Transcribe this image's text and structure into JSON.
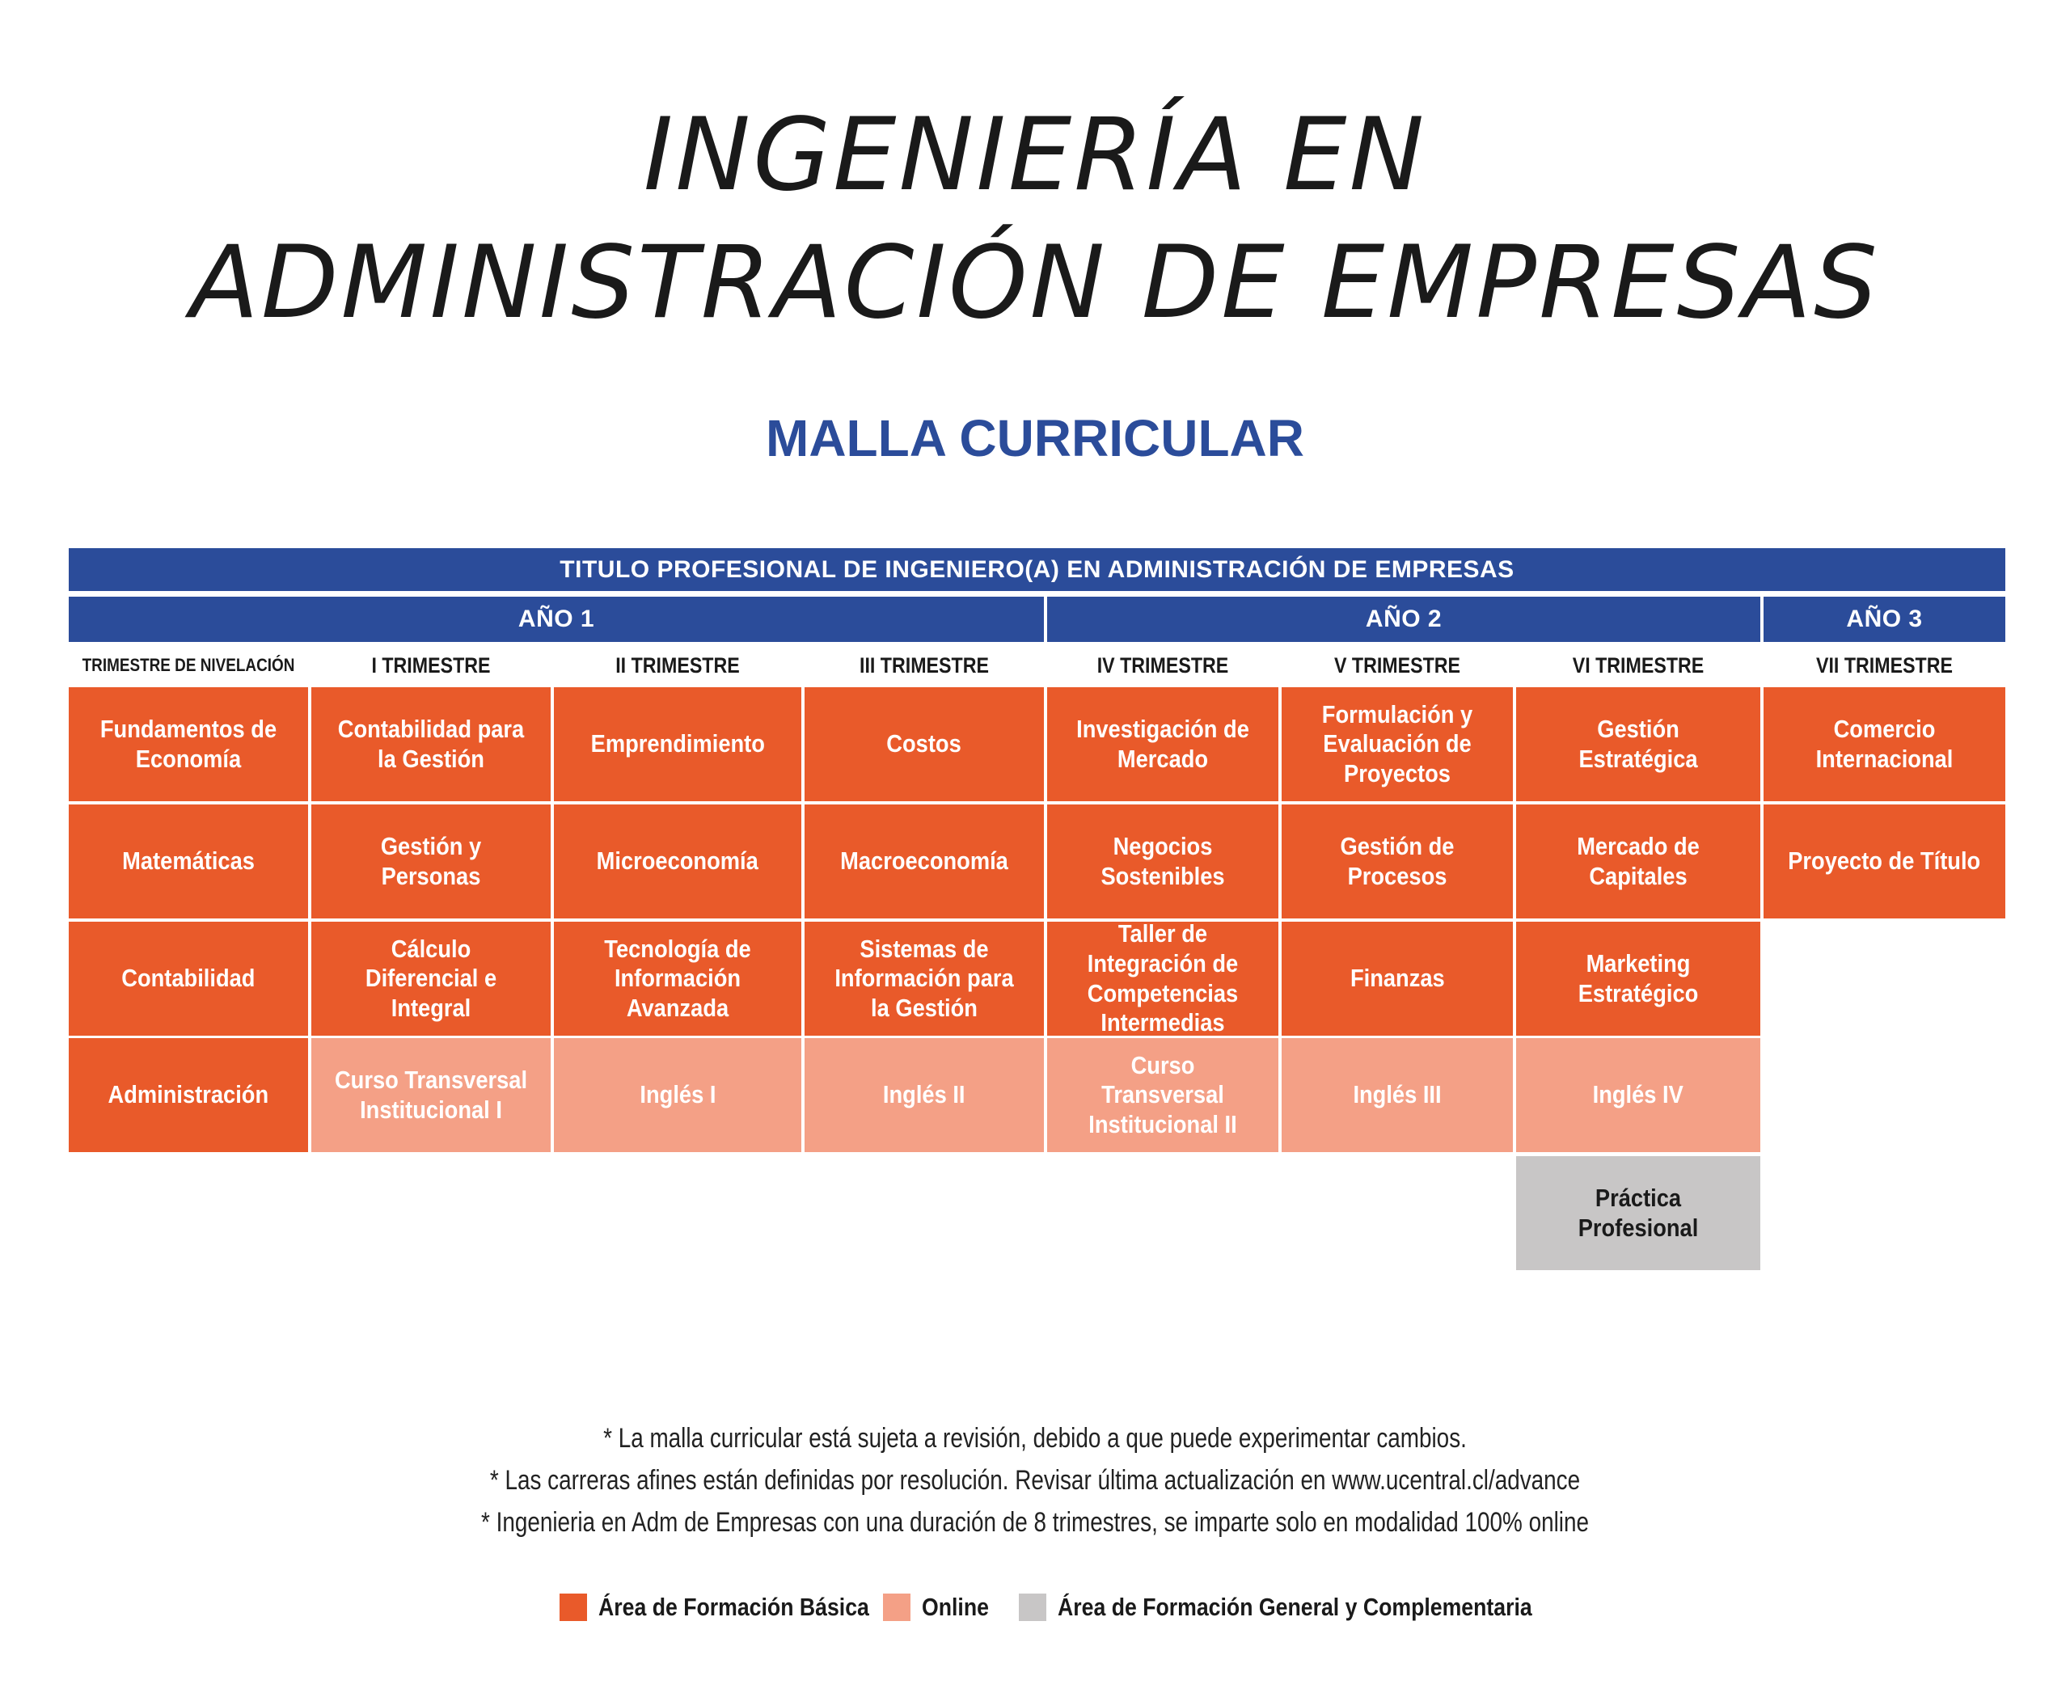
{
  "title_line1": "INGENIERÍA EN",
  "title_line2": "ADMINISTRACIÓN DE EMPRESAS",
  "subtitle": "MALLA CURRICULAR",
  "header_title": "TITULO PROFESIONAL DE INGENIERO(A) EN ADMINISTRACIÓN DE EMPRESAS",
  "years": [
    "AÑO 1",
    "AÑO 2",
    "AÑO 3"
  ],
  "columns": [
    "TRIMESTRE DE NIVELACIÓN",
    "I TRIMESTRE",
    "II TRIMESTRE",
    "III TRIMESTRE",
    "IV TRIMESTRE",
    "V TRIMESTRE",
    "VI TRIMESTRE",
    "VII TRIMESTRE"
  ],
  "rows": [
    [
      {
        "text": "Fundamentos de Economía",
        "area": "basic"
      },
      {
        "text": "Contabilidad para la Gestión",
        "area": "basic"
      },
      {
        "text": "Emprendimiento",
        "area": "basic"
      },
      {
        "text": "Costos",
        "area": "basic"
      },
      {
        "text": "Investigación de Mercado",
        "area": "basic"
      },
      {
        "text": "Formulación y Evaluación de Proyectos",
        "area": "basic"
      },
      {
        "text": "Gestión Estratégica",
        "area": "basic"
      },
      {
        "text": "Comercio Internacional",
        "area": "basic"
      }
    ],
    [
      {
        "text": "Matemáticas",
        "area": "basic"
      },
      {
        "text": "Gestión y Personas",
        "area": "basic"
      },
      {
        "text": "Microeconomía",
        "area": "basic"
      },
      {
        "text": "Macroeconomía",
        "area": "basic"
      },
      {
        "text": "Negocios Sostenibles",
        "area": "basic"
      },
      {
        "text": "Gestión de Procesos",
        "area": "basic"
      },
      {
        "text": "Mercado de Capitales",
        "area": "basic"
      },
      {
        "text": "Proyecto de Título",
        "area": "basic"
      }
    ],
    [
      {
        "text": "Contabilidad",
        "area": "basic"
      },
      {
        "text": "Cálculo Diferencial e Integral",
        "area": "basic"
      },
      {
        "text": "Tecnología de Información Avanzada",
        "area": "basic"
      },
      {
        "text": "Sistemas de Información para la Gestión",
        "area": "basic"
      },
      {
        "text": "Taller de Integración de Competencias Intermedias",
        "area": "basic"
      },
      {
        "text": "Finanzas",
        "area": "basic"
      },
      {
        "text": "Marketing Estratégico",
        "area": "basic"
      },
      null
    ],
    [
      {
        "text": "Administración",
        "area": "basic"
      },
      {
        "text": "Curso Transversal Institucional I",
        "area": "online"
      },
      {
        "text": "Inglés I",
        "area": "online"
      },
      {
        "text": "Inglés II",
        "area": "online"
      },
      {
        "text": "Curso Transversal Institucional II",
        "area": "online"
      },
      {
        "text": "Inglés III",
        "area": "online"
      },
      {
        "text": "Inglés IV",
        "area": "online"
      },
      null
    ],
    [
      null,
      null,
      null,
      null,
      null,
      null,
      {
        "text": "Práctica Profesional",
        "area": "general"
      },
      null
    ]
  ],
  "notes": [
    "* La  malla curricular está sujeta a revisión, debido a que puede experimentar cambios.",
    "* Las carreras afines están definidas por resolución. Revisar última actualización en www.ucentral.cl/advance",
    "* Ingenieria en Adm de Empresas con una duración de 8 trimestres, se imparte solo en modalidad 100% online"
  ],
  "legend": [
    {
      "label": "Área de Formación Básica",
      "color": "#e95a2a"
    },
    {
      "label": "Online",
      "color": "#f4a086"
    },
    {
      "label": "Área de Formación General y Complementaria",
      "color": "#c8c6c6"
    }
  ],
  "colors": {
    "header_blue": "#2b4c9a",
    "basic": "#e95a2a",
    "online": "#f4a086",
    "general": "#c8c6c6"
  }
}
